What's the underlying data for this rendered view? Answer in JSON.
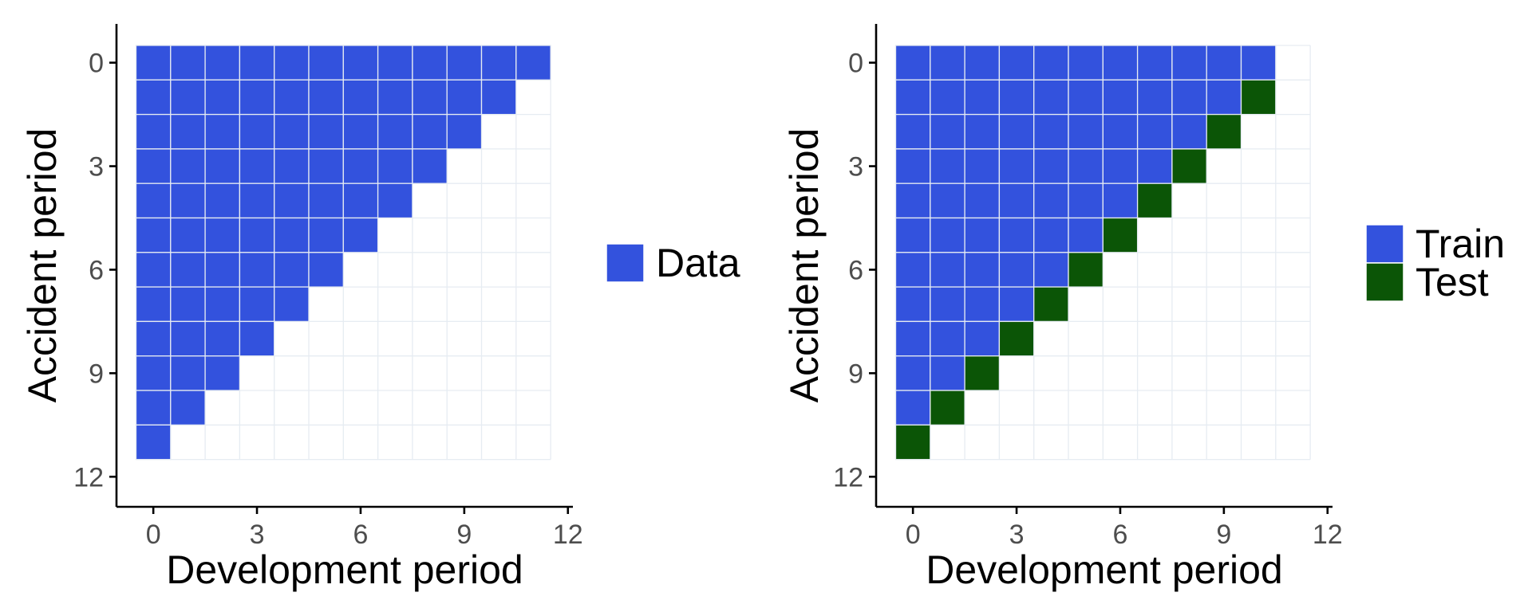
{
  "chart_data": [
    {
      "type": "heatmap",
      "xlabel": "Development period",
      "ylabel": "Accident period",
      "xlim": [
        -0.5,
        12
      ],
      "ylim": [
        -0.5,
        12
      ],
      "y_inverted": true,
      "xticks": [
        0,
        3,
        6,
        9,
        12
      ],
      "yticks": [
        0,
        3,
        6,
        9,
        12
      ],
      "grid": true,
      "grid_size": 12,
      "legend": {
        "position": "right",
        "entries": [
          "Data"
        ]
      },
      "series": [
        {
          "name": "Data",
          "color": "#3352dd",
          "rule": "accident + development <= 11"
        }
      ]
    },
    {
      "type": "heatmap",
      "xlabel": "Development period",
      "ylabel": "Accident period",
      "xlim": [
        -0.5,
        12
      ],
      "ylim": [
        -0.5,
        12
      ],
      "y_inverted": true,
      "xticks": [
        0,
        3,
        6,
        9,
        12
      ],
      "yticks": [
        0,
        3,
        6,
        9,
        12
      ],
      "grid": true,
      "grid_size": 12,
      "legend": {
        "position": "right",
        "entries": [
          "Train",
          "Test"
        ]
      },
      "series": [
        {
          "name": "Train",
          "color": "#3352dd",
          "rule": "accident + development <= 10"
        },
        {
          "name": "Test",
          "color": "#0b5506",
          "rule": "accident + development == 11, accident >= 1"
        }
      ]
    }
  ]
}
